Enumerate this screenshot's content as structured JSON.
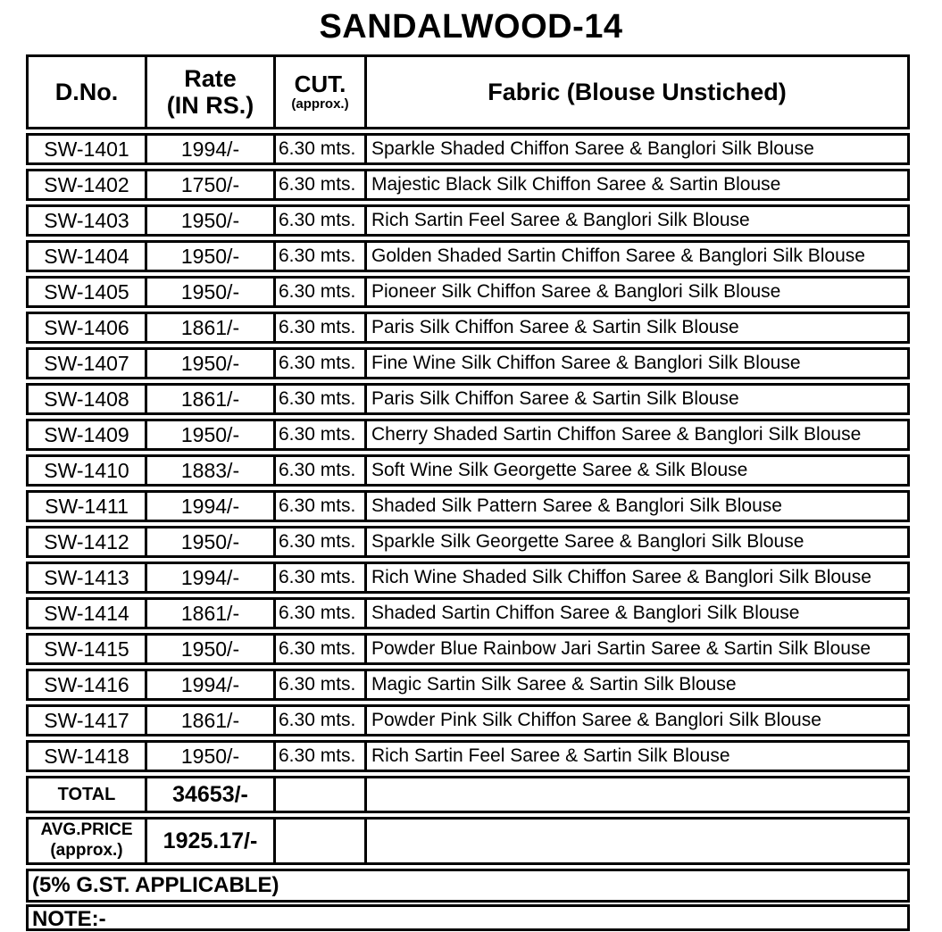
{
  "title": "SANDALWOOD-14",
  "table": {
    "headers": {
      "dno": "D.No.",
      "rate_line1": "Rate",
      "rate_line2": "(IN RS.)",
      "cut_line1": "CUT.",
      "cut_line2": "(approx.)",
      "fabric": "Fabric (Blouse Unstiched)"
    },
    "rows": [
      {
        "dno": "SW-1401",
        "rate": "1994/-",
        "cut": "6.30 mts.",
        "fabric": "Sparkle Shaded Chiffon Saree & Banglori Silk Blouse"
      },
      {
        "dno": "SW-1402",
        "rate": "1750/-",
        "cut": "6.30 mts.",
        "fabric": "Majestic Black Silk Chiffon Saree & Sartin Blouse"
      },
      {
        "dno": "SW-1403",
        "rate": "1950/-",
        "cut": "6.30 mts.",
        "fabric": "Rich Sartin Feel Saree & Banglori Silk Blouse"
      },
      {
        "dno": "SW-1404",
        "rate": "1950/-",
        "cut": "6.30 mts.",
        "fabric": "Golden Shaded Sartin Chiffon Saree & Banglori Silk Blouse"
      },
      {
        "dno": "SW-1405",
        "rate": "1950/-",
        "cut": "6.30 mts.",
        "fabric": "Pioneer Silk Chiffon Saree & Banglori Silk Blouse"
      },
      {
        "dno": "SW-1406",
        "rate": "1861/-",
        "cut": "6.30 mts.",
        "fabric": "Paris Silk Chiffon Saree &  Sartin Silk Blouse"
      },
      {
        "dno": "SW-1407",
        "rate": "1950/-",
        "cut": "6.30 mts.",
        "fabric": "Fine Wine Silk Chiffon Saree & Banglori Silk Blouse"
      },
      {
        "dno": "SW-1408",
        "rate": "1861/-",
        "cut": "6.30 mts.",
        "fabric": "Paris Silk Chiffon Saree &  Sartin Silk Blouse"
      },
      {
        "dno": "SW-1409",
        "rate": "1950/-",
        "cut": "6.30 mts.",
        "fabric": "Cherry Shaded Sartin Chiffon Saree & Banglori Silk Blouse"
      },
      {
        "dno": "SW-1410",
        "rate": "1883/-",
        "cut": "6.30 mts.",
        "fabric": "Soft Wine Silk Georgette Saree & Silk Blouse"
      },
      {
        "dno": "SW-1411",
        "rate": "1994/-",
        "cut": "6.30 mts.",
        "fabric": "Shaded Silk Pattern Saree & Banglori Silk Blouse"
      },
      {
        "dno": "SW-1412",
        "rate": "1950/-",
        "cut": "6.30 mts.",
        "fabric": "Sparkle Silk Georgette Saree & Banglori Silk Blouse"
      },
      {
        "dno": "SW-1413",
        "rate": "1994/-",
        "cut": "6.30 mts.",
        "fabric": "Rich Wine Shaded Silk Chiffon Saree & Banglori Silk Blouse"
      },
      {
        "dno": "SW-1414",
        "rate": "1861/-",
        "cut": "6.30 mts.",
        "fabric": "Shaded Sartin Chiffon Saree & Banglori Silk Blouse"
      },
      {
        "dno": "SW-1415",
        "rate": "1950/-",
        "cut": "6.30 mts.",
        "fabric": "Powder Blue Rainbow Jari Sartin Saree & Sartin Silk Blouse"
      },
      {
        "dno": "SW-1416",
        "rate": "1994/-",
        "cut": "6.30 mts.",
        "fabric": "Magic Sartin Silk Saree & Sartin Silk Blouse"
      },
      {
        "dno": "SW-1417",
        "rate": "1861/-",
        "cut": "6.30 mts.",
        "fabric": "Powder Pink Silk Chiffon Saree & Banglori Silk Blouse"
      },
      {
        "dno": "SW-1418",
        "rate": "1950/-",
        "cut": "6.30 mts.",
        "fabric": "Rich Sartin Feel Saree & Sartin Silk Blouse"
      }
    ],
    "total": {
      "label": "TOTAL",
      "value": "34653/-"
    },
    "avg": {
      "label_line1": "AVG.PRICE",
      "label_line2": "(approx.)",
      "value": "1925.17/-"
    },
    "gst_note": "(5% G.ST. APPLICABLE)",
    "note_label": "NOTE:-"
  }
}
